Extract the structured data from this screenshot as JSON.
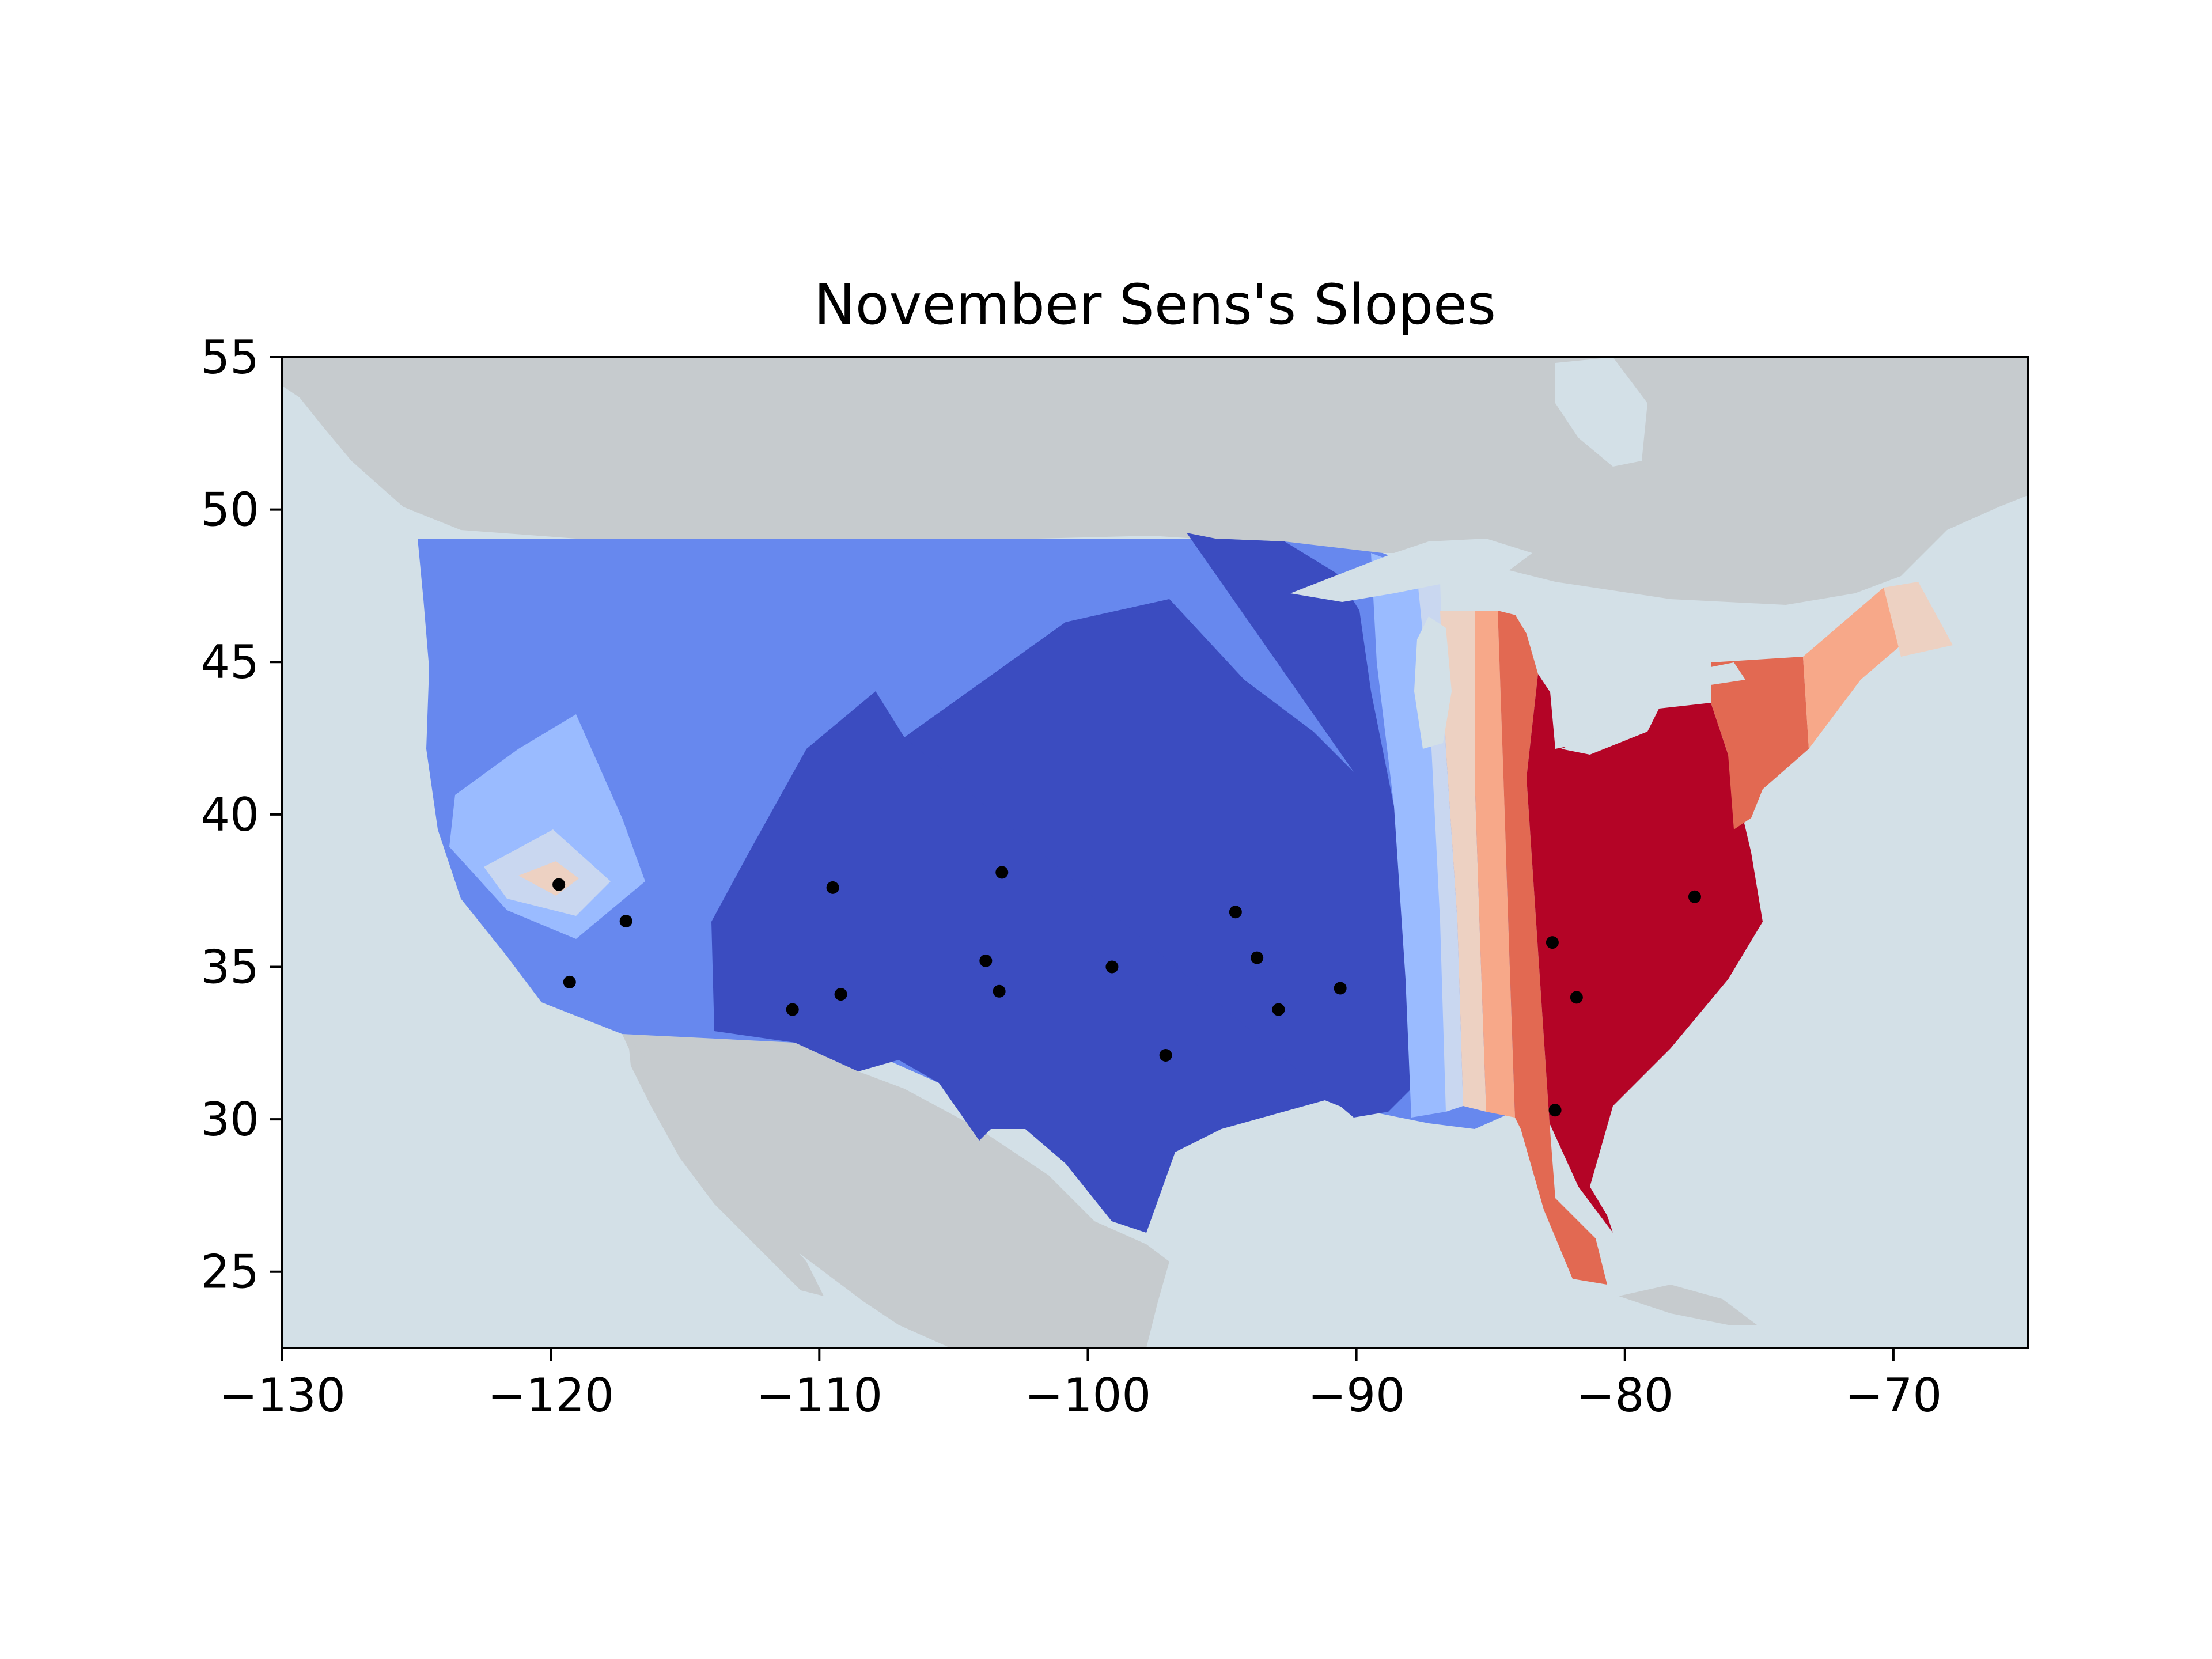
{
  "chart_data": {
    "type": "map-contour",
    "title": "November Sens's Slopes",
    "xlabel": "",
    "ylabel": "",
    "xlim": [
      -130,
      -65
    ],
    "ylim": [
      22.5,
      55
    ],
    "x_ticks": [
      -130,
      -120,
      -110,
      -100,
      -90,
      -80,
      -70
    ],
    "y_ticks": [
      25,
      30,
      35,
      40,
      45,
      50,
      55
    ],
    "x_tick_labels": [
      "−130",
      "−120",
      "−110",
      "−100",
      "−90",
      "−80",
      "−70"
    ],
    "y_tick_labels": [
      "25",
      "30",
      "35",
      "40",
      "45",
      "50",
      "55"
    ],
    "grid": false,
    "legend": "none",
    "colormap": "coolwarm",
    "colors": {
      "ocean": "#d3e0e7",
      "land": "#c6cbce",
      "level_1": "#3b4cc0",
      "level_2": "#6788ee",
      "level_3": "#9abbff",
      "level_4": "#c9d7f0",
      "level_5": "#edd1c2",
      "level_6": "#f7a889",
      "level_7": "#e26952",
      "level_8": "#b40426"
    },
    "stations": [
      {
        "lon": -119.7,
        "lat": 37.7
      },
      {
        "lon": -117.2,
        "lat": 36.5
      },
      {
        "lon": -119.3,
        "lat": 34.5
      },
      {
        "lon": -111.0,
        "lat": 33.6
      },
      {
        "lon": -109.5,
        "lat": 37.6
      },
      {
        "lon": -109.2,
        "lat": 34.1
      },
      {
        "lon": -103.8,
        "lat": 35.2
      },
      {
        "lon": -103.3,
        "lat": 34.2
      },
      {
        "lon": -103.2,
        "lat": 38.1
      },
      {
        "lon": -99.1,
        "lat": 35.0
      },
      {
        "lon": -97.1,
        "lat": 32.1
      },
      {
        "lon": -94.5,
        "lat": 36.8
      },
      {
        "lon": -93.7,
        "lat": 35.3
      },
      {
        "lon": -92.9,
        "lat": 33.6
      },
      {
        "lon": -90.6,
        "lat": 34.3
      },
      {
        "lon": -82.7,
        "lat": 35.8
      },
      {
        "lon": -81.8,
        "lat": 34.0
      },
      {
        "lon": -82.6,
        "lat": 30.3
      },
      {
        "lon": -77.4,
        "lat": 37.3
      }
    ]
  }
}
